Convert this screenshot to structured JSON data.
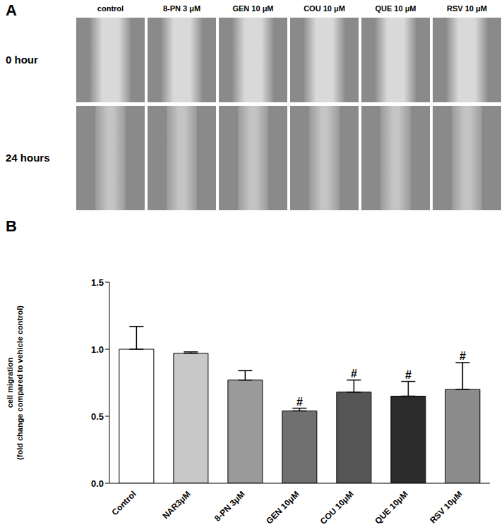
{
  "panel_a": {
    "label": "A",
    "columns": [
      "control",
      "8-PN 3 μM",
      "GEN 10 μM",
      "COU 10 μM",
      "QUE 10 μM",
      "RSV 10 μM"
    ],
    "rows": [
      "0 hour",
      "24 hours"
    ]
  },
  "panel_b": {
    "label": "B"
  },
  "chart_data": {
    "type": "bar",
    "categories": [
      "Control",
      "NAR3μM",
      "8-PN 3μM",
      "GEN 10μM",
      "COU 10μM",
      "QUE 10μM",
      "RSV 10μM"
    ],
    "values": [
      1.0,
      0.97,
      0.77,
      0.54,
      0.68,
      0.65,
      0.7
    ],
    "errors": [
      0.17,
      0.01,
      0.07,
      0.02,
      0.09,
      0.11,
      0.2
    ],
    "annotations": [
      null,
      null,
      null,
      "#",
      "#",
      "#",
      "#"
    ],
    "colors": [
      "#ffffff",
      "#c8c8c8",
      "#9a9a9a",
      "#707070",
      "#555555",
      "#2b2b2b",
      "#8c8c8c"
    ],
    "ylabel": [
      "cell migration",
      "(fold change compared to vehicle control)"
    ],
    "ylim": [
      0,
      1.5
    ],
    "yticks": [
      {
        "value": 0,
        "label": "0.0"
      },
      0.5,
      {
        "value": 1,
        "label": "1.0"
      },
      1.5
    ],
    "grid": false
  }
}
